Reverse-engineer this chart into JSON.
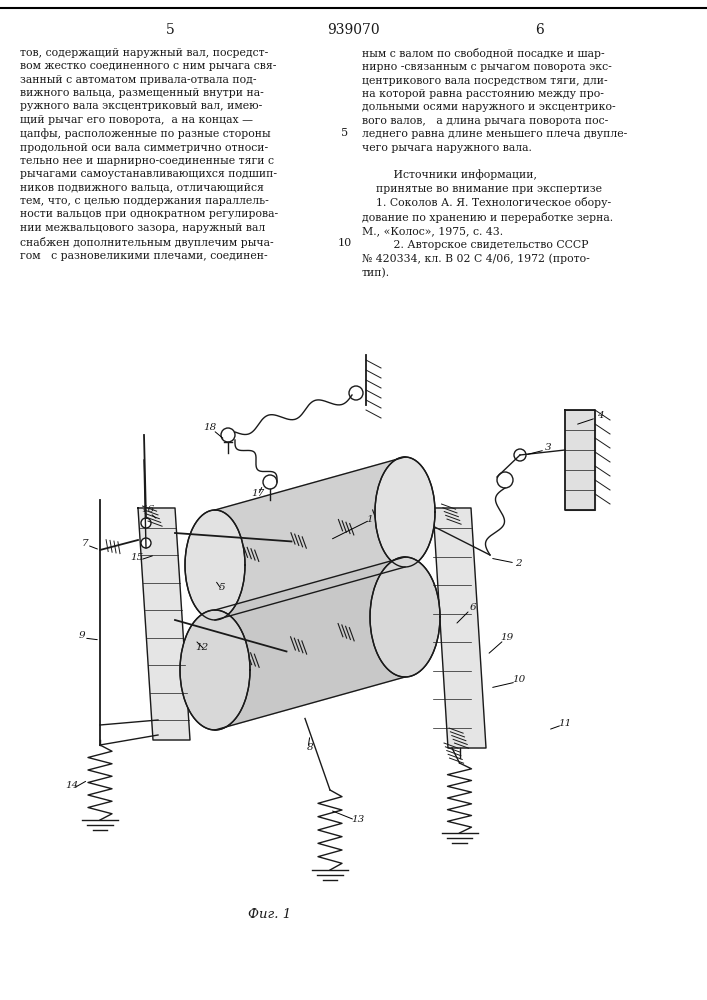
{
  "patent_number": "939070",
  "page_left": "5",
  "page_right": "6",
  "text_left": "тов, содержащий наружный вал, посредст-\nвом жестко соединенного с ним рычага свя-\nзанный с автоматом привала-отвала под-\nвижного вальца, размещенный внутри на-\nружного вала эксцентриковый вал, имею-\nщий рычаг его поворота,  а на концах —\nцапфы, расположенные по разные стороны\nпродольной оси вала симметрично относи-\nтельно нее и шарнирно-соединенные тяги с\nрычагами самоустанавливающихся подшип-\nников подвижного вальца, отличающийся\nтем, что, с целью поддержания параллель-\nности вальцов при однократном регулирова-\nнии межвальцового зазора, наружный вал\nснабжен дополнительным двуплечим рыча-\nгом   с разновеликими плечами, соединен-",
  "text_right": "ным с валом по свободной посадке и шар-\nнирно -связанным с рычагом поворота экс-\nцентрикового вала посредством тяги, дли-\nна которой равна расстоянию между про-\nдольными осями наружного и эксцентрико-\nвого валов,   а длина рычага поворота пос-\nледнего равна длине меньшего плеча двупле-\nчего рычага наружного вала.\n\n         Источники информации,\n    принятые во внимание при экспертизе\n    1. Соколов А. Я. Технологическое обору-\nдование по хранению и переработке зерна.\nМ., «Колос», 1975, с. 43.\n         2. Авторское свидетельство СССР\n№ 420334, кл. В 02 С 4/06, 1972 (прото-\nтип).",
  "fig_label": "Фиг. 1",
  "bg_color": "#ffffff",
  "text_color": "#1a1a1a",
  "line_color": "#1a1a1a"
}
